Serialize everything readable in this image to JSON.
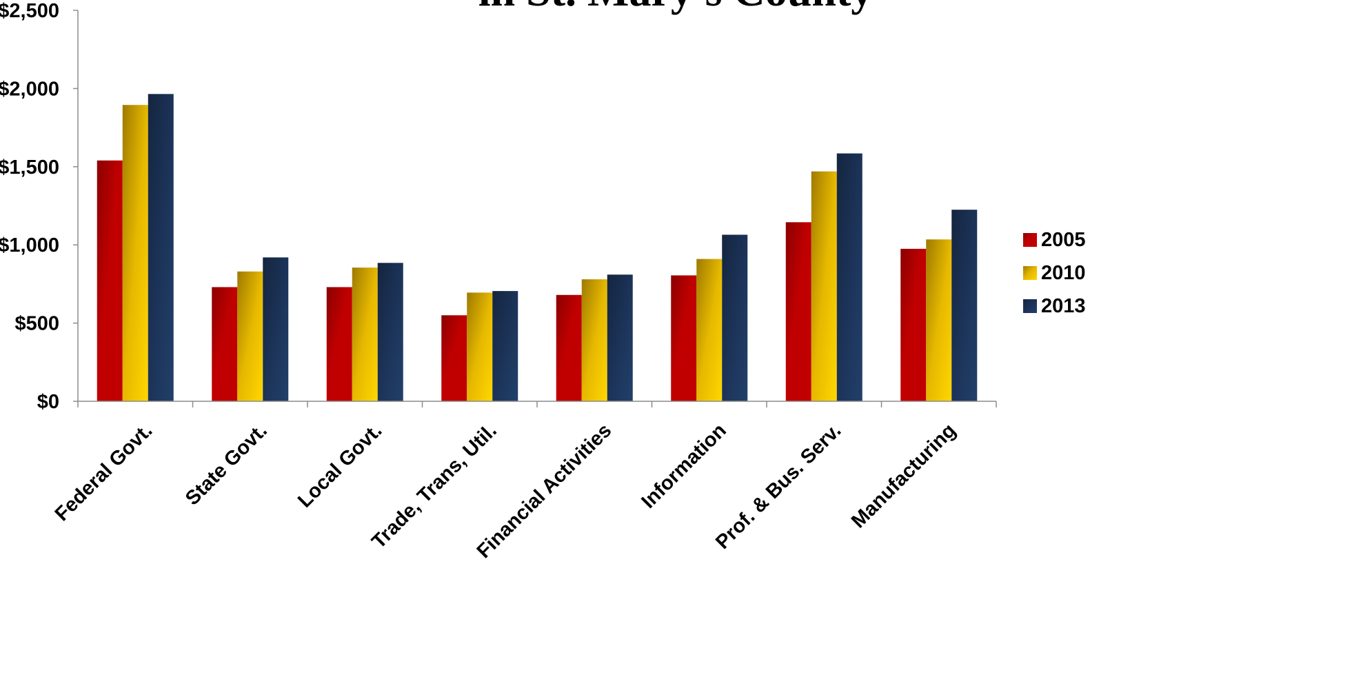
{
  "chart_data": {
    "type": "bar",
    "title": "in St. Mary's County",
    "categories": [
      "Federal Govt.",
      "State Govt.",
      "Local Govt.",
      "Trade, Trans, Util.",
      "Financial Activities",
      "Information",
      "Prof. & Bus. Serv.",
      "Manufacturing"
    ],
    "series": [
      {
        "name": "2005",
        "color": "#C00000",
        "values": [
          1540,
          730,
          730,
          550,
          680,
          805,
          1145,
          975
        ]
      },
      {
        "name": "2010",
        "color": "#F2C200",
        "values": [
          1895,
          830,
          855,
          695,
          780,
          910,
          1470,
          1035
        ]
      },
      {
        "name": "2013",
        "color": "#1F3864",
        "values": [
          1965,
          920,
          885,
          705,
          810,
          1065,
          1585,
          1225
        ]
      }
    ],
    "ylim": [
      0,
      2500
    ],
    "yticks": [
      0,
      500,
      1000,
      1500,
      2000,
      2500
    ],
    "ytick_labels": [
      "$0",
      "$500",
      "$1,000",
      "$1,500",
      "$2,000",
      "$2,500"
    ],
    "xlabel": "",
    "ylabel": "",
    "grid": false,
    "legend": "right"
  }
}
